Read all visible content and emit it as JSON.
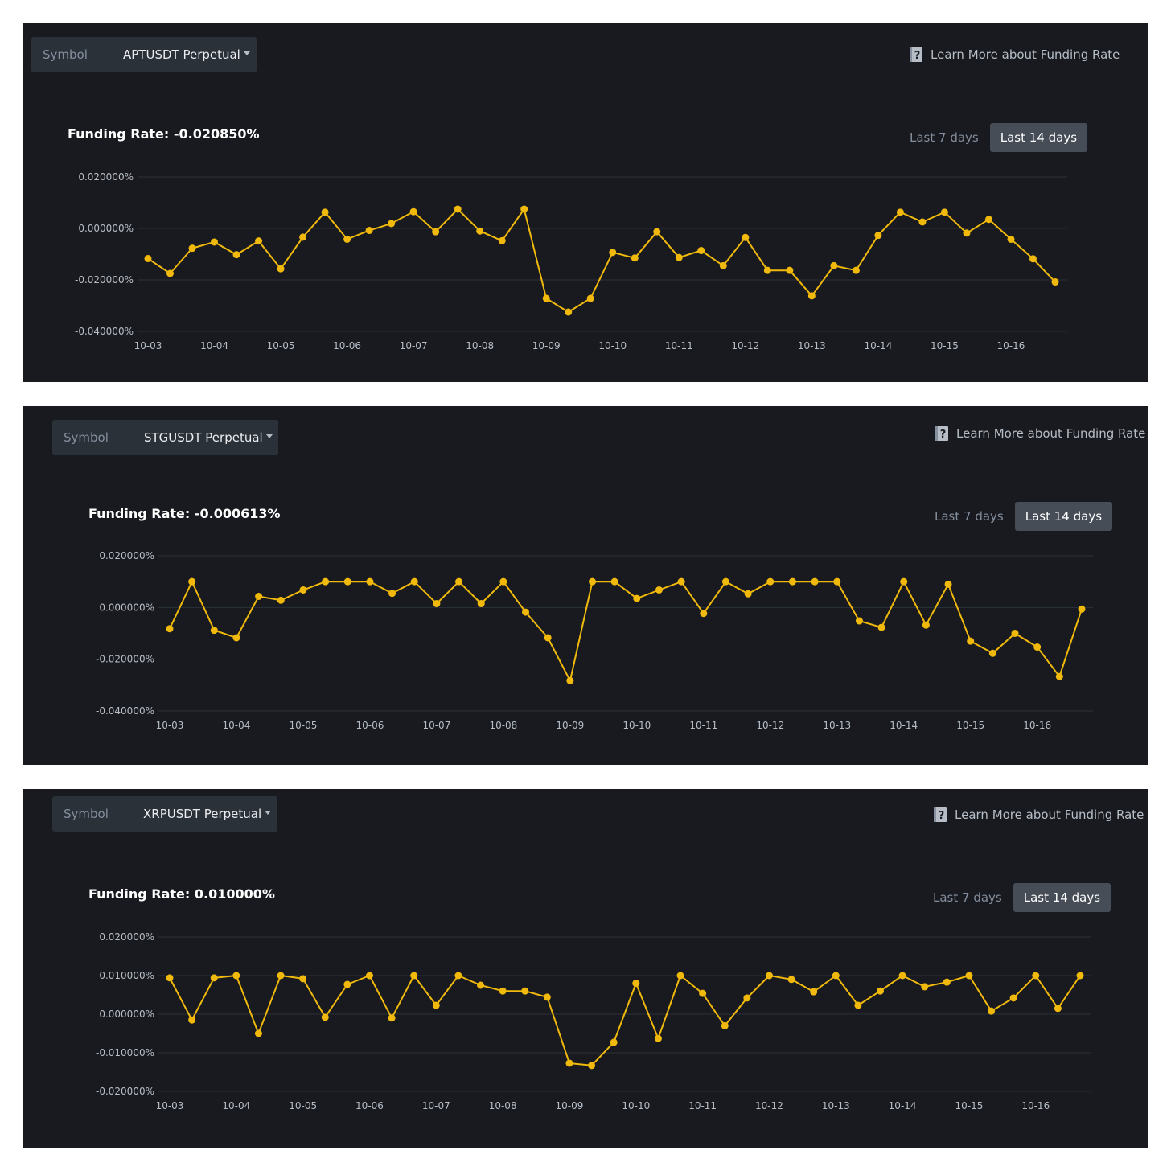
{
  "panels": [
    {
      "symbol_label": "Symbol",
      "symbol_value": "APTUSDT Perpetual",
      "learn_more": "Learn More about Funding Rate",
      "rate_label": "Funding Rate: -0.020850%",
      "range_7": "Last 7 days",
      "range_14": "Last 14 days",
      "selected_range": "Last 14 days"
    },
    {
      "symbol_label": "Symbol",
      "symbol_value": "STGUSDT Perpetual",
      "learn_more": "Learn More about Funding Rate",
      "rate_label": "Funding Rate: -0.000613%",
      "range_7": "Last 7 days",
      "range_14": "Last 14 days",
      "selected_range": "Last 14 days"
    },
    {
      "symbol_label": "Symbol",
      "symbol_value": "XRPUSDT Perpetual",
      "learn_more": "Learn More about Funding Rate",
      "rate_label": "Funding Rate: 0.010000%",
      "range_7": "Last 7 days",
      "range_14": "Last 14 days",
      "selected_range": "Last 14 days"
    }
  ],
  "colors": {
    "background": "#181a20",
    "line": "#f0b90b",
    "grid": "#2b3139",
    "text_muted": "#848e9c",
    "button_active": "#474d57"
  },
  "chart_data": [
    {
      "type": "line",
      "x_tick_labels": [
        "10-03",
        "10-04",
        "10-05",
        "10-06",
        "10-07",
        "10-08",
        "10-09",
        "10-10",
        "10-11",
        "10-12",
        "10-13",
        "10-14",
        "10-15",
        "10-16"
      ],
      "y_tick_labels": [
        "0.020000%",
        "0.000000%",
        "-0.020000%",
        "-0.040000%"
      ],
      "ylim": [
        -0.04,
        0.02
      ],
      "grid": true,
      "series": [
        {
          "values": [
            -0.0117,
            -0.0175,
            -0.0077,
            -0.0053,
            -0.0102,
            -0.0049,
            -0.0157,
            -0.0034,
            0.0063,
            -0.0042,
            -0.0008,
            0.0019,
            0.0065,
            -0.0013,
            0.0075,
            -0.001,
            -0.0048,
            0.0075,
            -0.0272,
            -0.0325,
            -0.0272,
            -0.0093,
            -0.0115,
            -0.0013,
            -0.0113,
            -0.0086,
            -0.0145,
            -0.0035,
            -0.0163,
            -0.0163,
            -0.0262,
            -0.0145,
            -0.0163,
            -0.0027,
            0.0063,
            0.0025,
            0.0063,
            -0.0018,
            0.0035,
            -0.0042,
            -0.0118,
            -0.0208
          ]
        }
      ]
    },
    {
      "type": "line",
      "x_tick_labels": [
        "10-03",
        "10-04",
        "10-05",
        "10-06",
        "10-07",
        "10-08",
        "10-09",
        "10-10",
        "10-11",
        "10-12",
        "10-13",
        "10-14",
        "10-15",
        "10-16"
      ],
      "y_tick_labels": [
        "0.020000%",
        "0.000000%",
        "-0.020000%",
        "-0.040000%"
      ],
      "ylim": [
        -0.04,
        0.02
      ],
      "grid": true,
      "series": [
        {
          "values": [
            -0.0082,
            0.01,
            -0.0088,
            -0.0117,
            0.0043,
            0.0028,
            0.0068,
            0.01,
            0.01,
            0.01,
            0.0055,
            0.01,
            0.0015,
            0.01,
            0.0015,
            0.01,
            -0.0018,
            -0.0117,
            -0.0283,
            0.01,
            0.01,
            0.0035,
            0.0068,
            0.01,
            -0.0023,
            0.01,
            0.0053,
            0.01,
            0.01,
            0.01,
            0.01,
            -0.0052,
            -0.0077,
            0.01,
            -0.0068,
            0.009,
            -0.013,
            -0.0177,
            -0.01,
            -0.0153,
            -0.0267,
            -0.0006
          ]
        }
      ]
    },
    {
      "type": "line",
      "x_tick_labels": [
        "10-03",
        "10-04",
        "10-05",
        "10-06",
        "10-07",
        "10-08",
        "10-09",
        "10-10",
        "10-11",
        "10-12",
        "10-13",
        "10-14",
        "10-15",
        "10-16"
      ],
      "y_tick_labels": [
        "0.020000%",
        "0.010000%",
        "0.000000%",
        "-0.010000%",
        "-0.020000%"
      ],
      "ylim": [
        -0.02,
        0.02
      ],
      "grid": true,
      "series": [
        {
          "values": [
            0.0094,
            -0.0015,
            0.0094,
            0.01,
            -0.005,
            0.01,
            0.0092,
            -0.0008,
            0.0077,
            0.01,
            -0.001,
            0.01,
            0.0023,
            0.01,
            0.0075,
            0.006,
            0.006,
            0.0044,
            -0.0127,
            -0.0133,
            -0.0073,
            0.008,
            -0.0063,
            0.01,
            0.0054,
            -0.003,
            0.0042,
            0.01,
            0.009,
            0.0058,
            0.01,
            0.0023,
            0.006,
            0.01,
            0.0071,
            0.0083,
            0.01,
            0.0008,
            0.0042,
            0.01,
            0.0015,
            0.01
          ]
        }
      ]
    }
  ]
}
